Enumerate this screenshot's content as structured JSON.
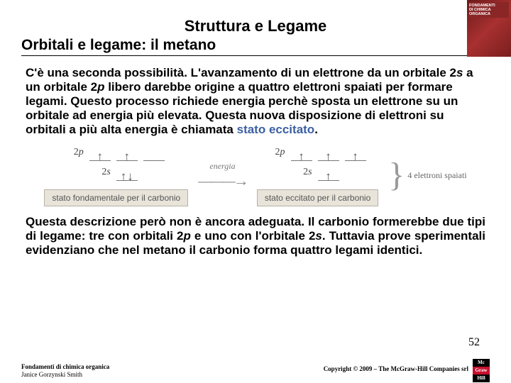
{
  "title": {
    "main": "Struttura e Legame",
    "sub": "Orbitali e legame: il metano"
  },
  "para1": {
    "t1": "C'è una seconda possibilità. L'avanzamento di un elettrone da un orbitale 2",
    "s": "s",
    "t2": " a un orbitale 2",
    "p": "p",
    "t3": " libero darebbe origine a quattro elettroni spaiati per formare legami. Questo processo richiede energia perchè sposta un elettrone su un orbitale ad energia più elevata. Questa nuova disposizione di elettroni su orbitali a più alta energia è chiamata ",
    "blue": "stato eccitato",
    "dot": "."
  },
  "diagram": {
    "label_2p": "2p",
    "label_2s": "2s",
    "energia": "energia",
    "state_ground": "stato fondamentale per il carbonio",
    "state_excited": "stato eccitato per il carbonio",
    "brace_label": "4 elettroni spaiati"
  },
  "para2": {
    "t1": "Questa descrizione però non è ancora adeguata. Il carbonio formerebbe due tipi di legame: tre con orbitali 2",
    "p": "p",
    "t2": " e uno con l'orbitale 2",
    "s": "s",
    "t3": ". Tuttavia prove sperimentali evidenziano che nel metano il carbonio forma quattro legami identici."
  },
  "page_number": "52",
  "footer": {
    "book": "Fondamenti di chimica organica",
    "author": "Janice Gorzynski Smith",
    "copyright": "Copyright © 2009 – The McGraw-Hill Companies srl"
  },
  "thumb": {
    "line1": "FONDAMENTI",
    "line2": "DI CHIMICA",
    "line3": "ORGANICA"
  },
  "logo": {
    "a": "Mc",
    "b": "Graw",
    "c": "Hill"
  }
}
